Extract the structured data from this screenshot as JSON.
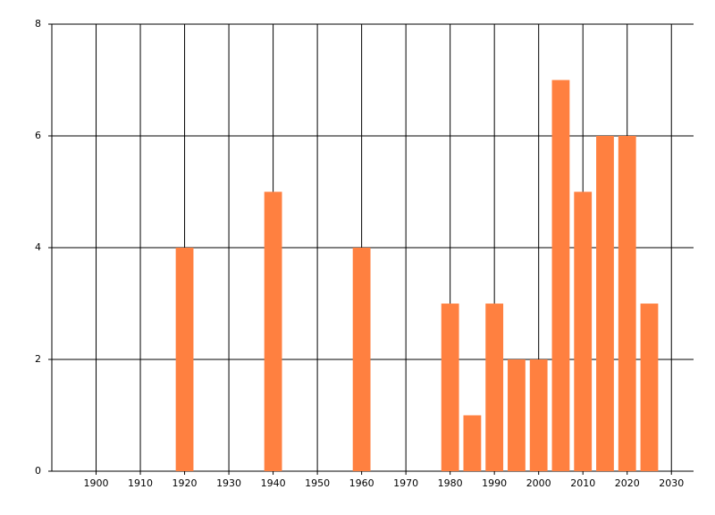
{
  "chart_data": {
    "type": "bar",
    "x": [
      1920,
      1940,
      1960,
      1980,
      1985,
      1990,
      1995,
      2000,
      2005,
      2010,
      2015,
      2020,
      2025
    ],
    "values": [
      4,
      5,
      4,
      3,
      1,
      3,
      2,
      2,
      7,
      5,
      6,
      6,
      3
    ],
    "color": "#ff8040",
    "xlim": [
      1890,
      2035
    ],
    "xticks": [
      1900,
      1910,
      1920,
      1930,
      1940,
      1950,
      1960,
      1970,
      1980,
      1990,
      2000,
      2010,
      2020,
      2030
    ],
    "ylim": [
      0,
      8
    ],
    "yticks": [
      0,
      2,
      4,
      6,
      8
    ],
    "grid": true
  }
}
